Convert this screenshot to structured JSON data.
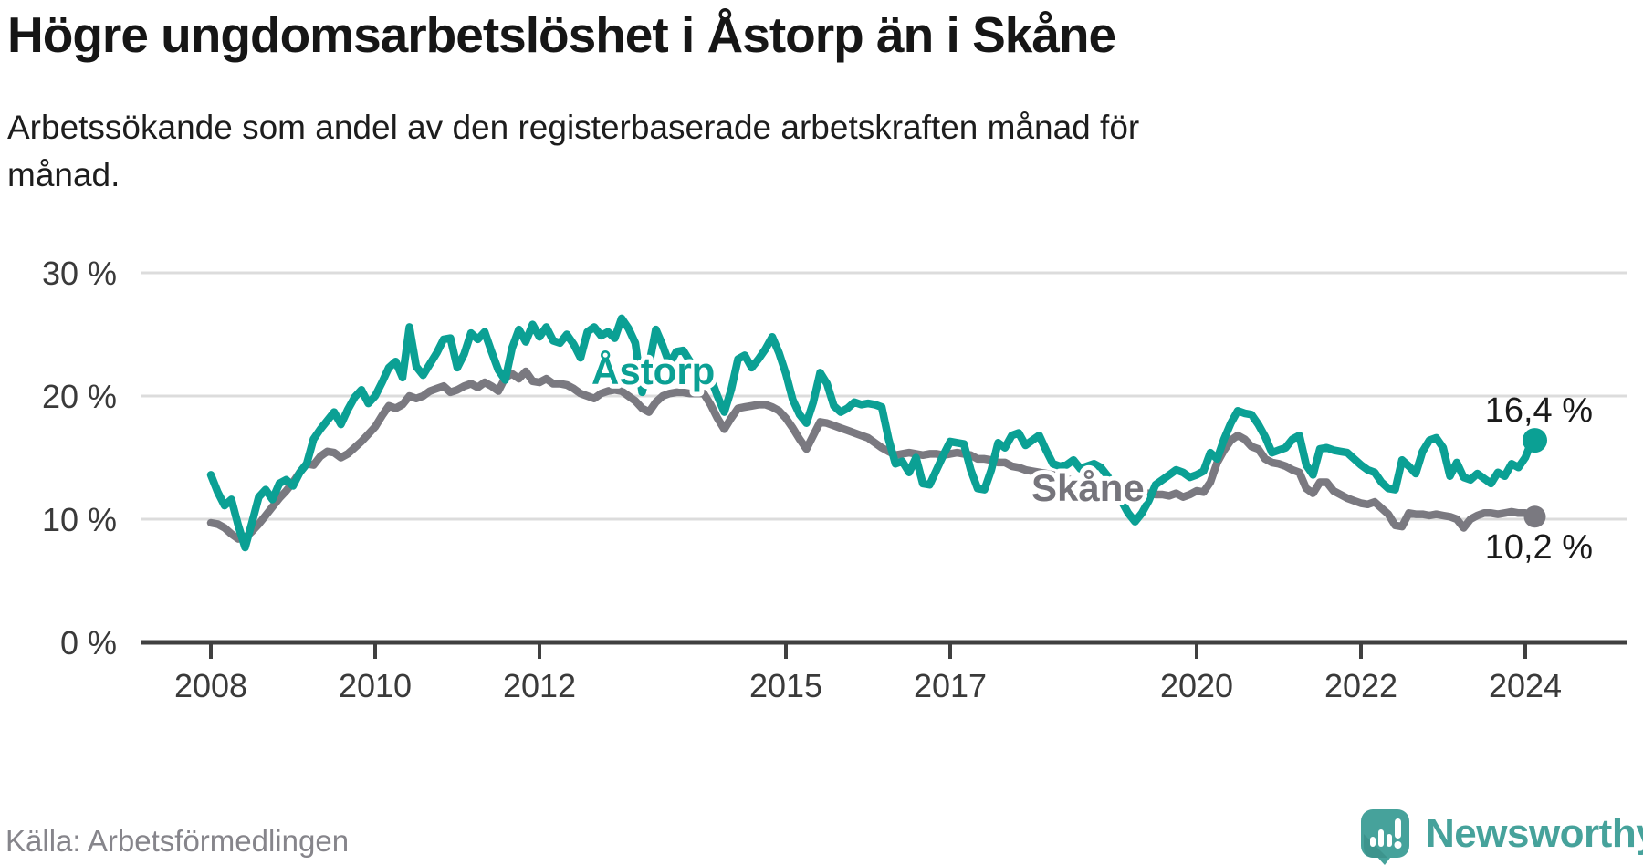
{
  "header": {
    "title": "Högre ungdomsarbetslöshet i Åstorp än i Skåne",
    "subtitle_lines": [
      "Arbetssökande som andel av den registerbaserade arbetskraften månad för",
      "månad."
    ]
  },
  "source": {
    "label": "Källa: Arbetsförmedlingen"
  },
  "branding": {
    "name": "Newsworthy",
    "logo_icon": "speech-bubble-bar-chart-icon",
    "brand_color": "#46a29b"
  },
  "colors": {
    "astorp_line": "#0ba094",
    "skane_line": "#7a7980",
    "gridline": "#dcdcdc",
    "axis": "#404040",
    "tick_label": "#3a3a3a",
    "annotation": "#1a1a1a"
  },
  "chart_data": {
    "type": "line",
    "unit": "%",
    "x_frequency": "monthly",
    "x_start": "2008-01",
    "x_end": "2024-02",
    "ylim": [
      0,
      30
    ],
    "grid": "horizontal-only",
    "legend_position": "inline-labels",
    "yticks": [
      {
        "value": 0,
        "label": "0 %"
      },
      {
        "value": 10,
        "label": "10 %"
      },
      {
        "value": 20,
        "label": "20 %"
      },
      {
        "value": 30,
        "label": "30 %"
      }
    ],
    "xticks": [
      {
        "year": 2008,
        "label": "2008"
      },
      {
        "year": 2010,
        "label": "2010"
      },
      {
        "year": 2012,
        "label": "2012"
      },
      {
        "year": 2015,
        "label": "2015"
      },
      {
        "year": 2017,
        "label": "2017"
      },
      {
        "year": 2020,
        "label": "2020"
      },
      {
        "year": 2022,
        "label": "2022"
      },
      {
        "year": 2024,
        "label": "2024"
      }
    ],
    "series": [
      {
        "name": "Åstorp",
        "color": "#0ba094",
        "end_value": 16.4,
        "end_label": "16,4 %",
        "values": [
          13.6,
          12.2,
          11.1,
          11.6,
          9.5,
          7.7,
          9.7,
          11.8,
          12.4,
          11.6,
          12.9,
          13.2,
          12.7,
          13.8,
          14.5,
          16.5,
          17.3,
          18.0,
          18.7,
          17.7,
          18.9,
          19.9,
          20.5,
          19.4,
          20.0,
          21.1,
          22.3,
          22.8,
          21.5,
          25.6,
          22.4,
          21.7,
          22.6,
          23.5,
          24.6,
          24.7,
          22.3,
          23.4,
          25.1,
          24.6,
          25.2,
          23.6,
          22.1,
          21.3,
          23.9,
          25.4,
          24.4,
          25.8,
          24.8,
          25.6,
          24.5,
          24.3,
          25.0,
          24.2,
          23.1,
          25.2,
          25.6,
          24.9,
          25.2,
          24.7,
          26.3,
          25.5,
          24.3,
          20.3,
          22.5,
          25.4,
          24.1,
          22.6,
          23.6,
          23.7,
          22.8,
          22.1,
          22.4,
          21.5,
          20.0,
          18.7,
          20.5,
          23.0,
          23.3,
          22.3,
          23.0,
          23.8,
          24.8,
          23.5,
          21.8,
          19.7,
          18.5,
          17.8,
          19.5,
          21.9,
          21.0,
          19.2,
          18.7,
          19.0,
          19.5,
          19.3,
          19.4,
          19.3,
          19.1,
          16.5,
          14.5,
          14.7,
          13.8,
          15.0,
          12.9,
          12.8,
          14.0,
          15.2,
          16.3,
          16.2,
          16.1,
          14.0,
          12.5,
          12.4,
          14.0,
          16.2,
          15.8,
          16.8,
          17.0,
          16.0,
          16.4,
          16.8,
          15.6,
          14.5,
          14.3,
          14.4,
          14.8,
          14.1,
          14.3,
          14.5,
          14.2,
          13.5,
          12.5,
          11.5,
          10.5,
          9.8,
          10.5,
          11.5,
          12.8,
          13.2,
          13.6,
          14.0,
          13.8,
          13.4,
          13.6,
          13.9,
          15.4,
          14.9,
          16.5,
          17.8,
          18.8,
          18.6,
          18.5,
          17.7,
          16.7,
          15.4,
          15.6,
          15.8,
          16.5,
          16.8,
          14.4,
          13.6,
          15.7,
          15.8,
          15.6,
          15.5,
          15.4,
          14.9,
          14.4,
          14.0,
          13.8,
          13.0,
          12.5,
          12.4,
          14.8,
          14.3,
          13.7,
          15.5,
          16.4,
          16.6,
          15.8,
          13.5,
          14.6,
          13.4,
          13.2,
          13.7,
          13.3,
          12.9,
          13.8,
          13.5,
          14.5,
          14.2,
          15.0,
          16.4
        ]
      },
      {
        "name": "Skåne",
        "color": "#7a7980",
        "end_value": 10.2,
        "end_label": "10,2 %",
        "values": [
          9.7,
          9.6,
          9.3,
          8.8,
          8.4,
          8.5,
          9.0,
          9.6,
          10.3,
          11.0,
          11.7,
          12.3,
          13.0,
          13.8,
          14.5,
          14.4,
          15.1,
          15.5,
          15.4,
          15.0,
          15.3,
          15.8,
          16.3,
          16.9,
          17.5,
          18.4,
          19.2,
          19.0,
          19.3,
          20.0,
          19.8,
          20.0,
          20.4,
          20.6,
          20.8,
          20.3,
          20.5,
          20.8,
          21.0,
          20.7,
          21.1,
          20.8,
          20.4,
          21.5,
          21.8,
          21.4,
          22.0,
          21.2,
          21.1,
          21.4,
          21.0,
          21.0,
          20.9,
          20.6,
          20.2,
          20.0,
          19.8,
          20.2,
          20.4,
          20.5,
          20.4,
          20.0,
          19.6,
          19.0,
          18.7,
          19.5,
          20.0,
          20.2,
          20.3,
          20.3,
          20.2,
          20.2,
          20.2,
          19.3,
          18.2,
          17.3,
          18.2,
          19.0,
          19.1,
          19.2,
          19.3,
          19.3,
          19.1,
          18.8,
          18.2,
          17.4,
          16.5,
          15.7,
          16.8,
          17.9,
          17.8,
          17.6,
          17.4,
          17.2,
          17.0,
          16.8,
          16.6,
          16.2,
          15.8,
          15.5,
          15.2,
          15.3,
          15.4,
          15.3,
          15.2,
          15.3,
          15.3,
          15.2,
          15.3,
          15.4,
          15.3,
          15.2,
          14.9,
          14.9,
          14.8,
          14.6,
          14.6,
          14.3,
          14.2,
          14.0,
          13.9,
          13.8,
          13.7,
          13.6,
          13.4,
          13.3,
          13.1,
          13.0,
          12.9,
          12.8,
          12.6,
          12.4,
          12.3,
          12.2,
          12.1,
          12.0,
          12.0,
          12.1,
          12.0,
          12.0,
          11.9,
          12.1,
          11.8,
          12.0,
          12.3,
          12.2,
          13.0,
          14.6,
          15.6,
          16.4,
          16.8,
          16.5,
          15.9,
          15.7,
          14.9,
          14.6,
          14.5,
          14.3,
          14.0,
          13.8,
          12.5,
          12.1,
          13.0,
          13.0,
          12.3,
          12.0,
          11.7,
          11.5,
          11.3,
          11.2,
          11.4,
          10.9,
          10.4,
          9.5,
          9.4,
          10.5,
          10.4,
          10.4,
          10.3,
          10.4,
          10.3,
          10.2,
          10.0,
          9.3,
          10.0,
          10.3,
          10.5,
          10.5,
          10.4,
          10.5,
          10.6,
          10.5,
          10.5,
          10.2
        ]
      }
    ]
  }
}
